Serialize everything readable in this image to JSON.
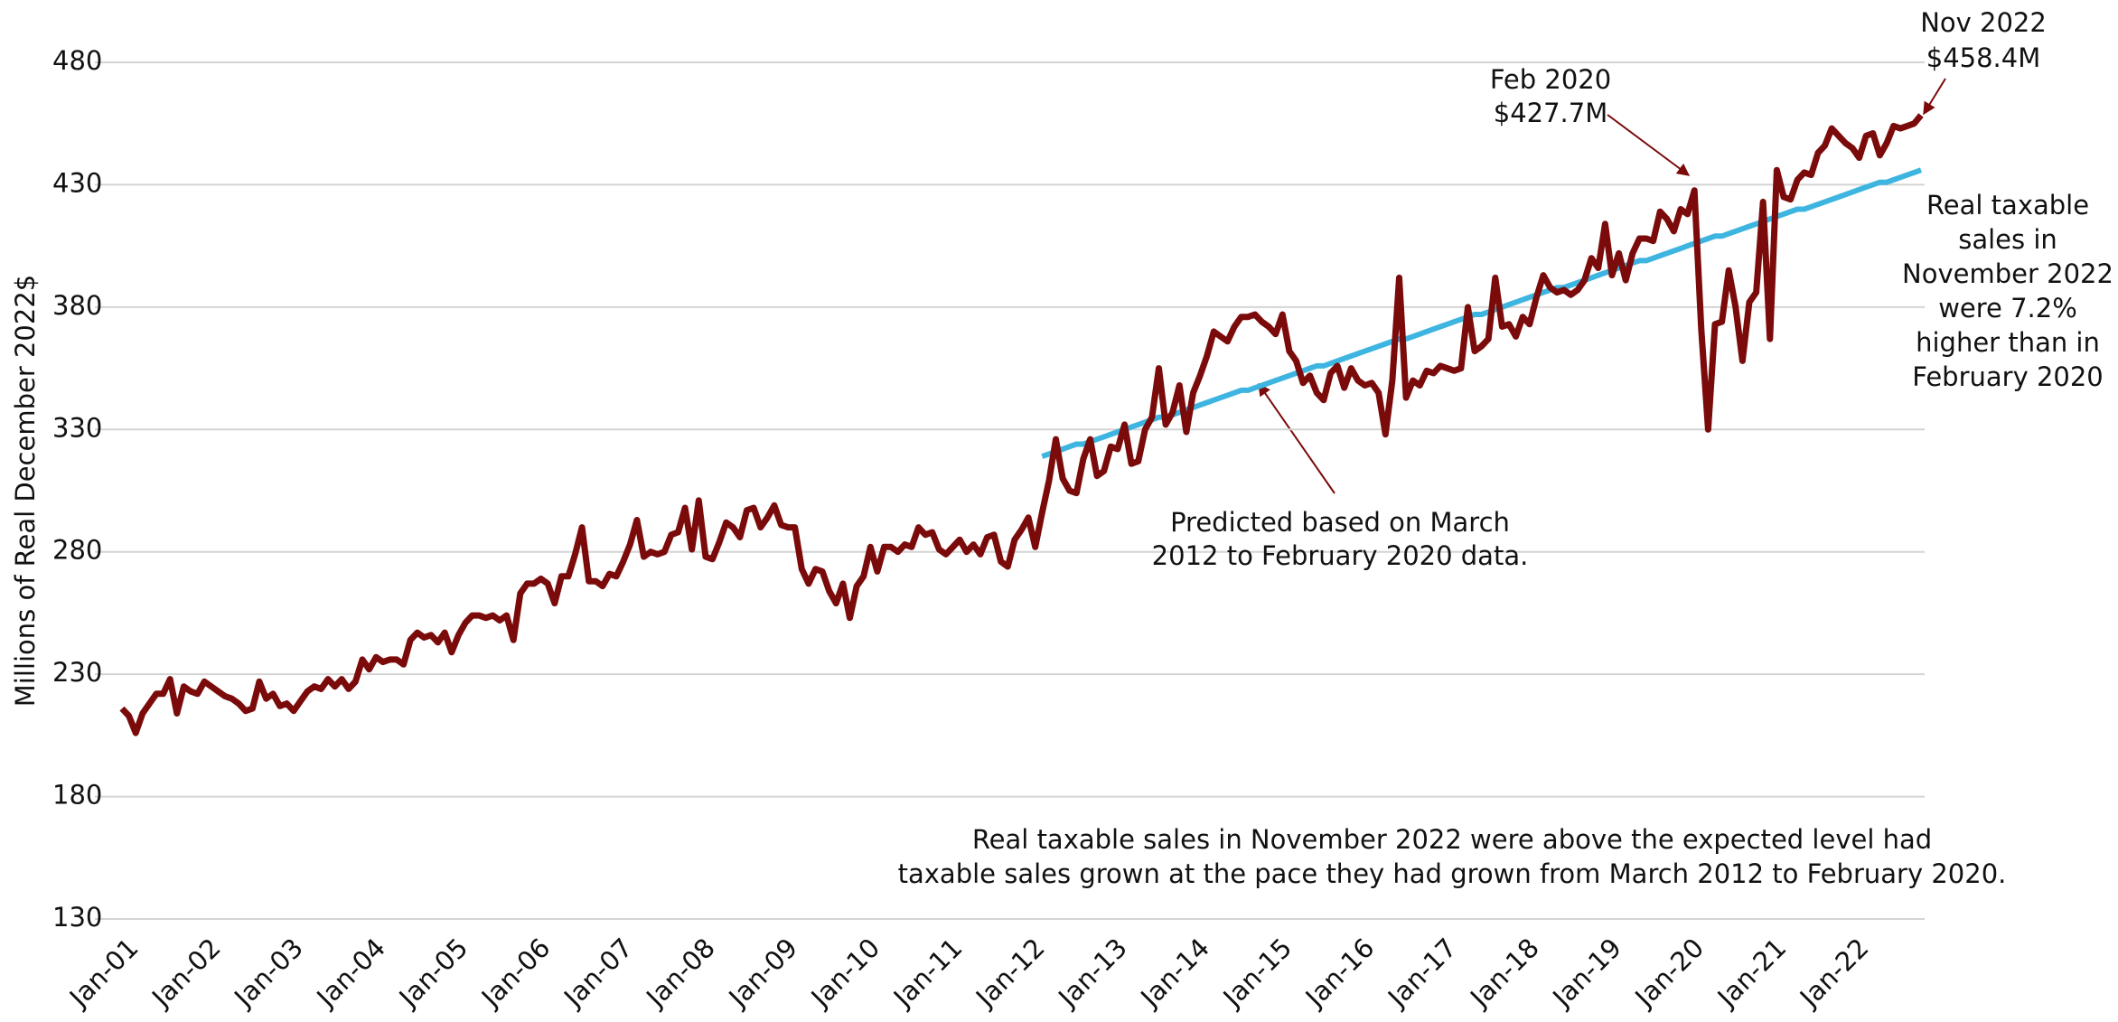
{
  "chart_data": {
    "type": "line",
    "ylabel": "Millions of Real December 2022$",
    "ylim": [
      130,
      480
    ],
    "yticks": [
      130,
      180,
      230,
      280,
      330,
      380,
      430,
      480
    ],
    "grid": true,
    "categories": [
      "Jan-01",
      null,
      null,
      null,
      null,
      null,
      null,
      null,
      null,
      null,
      null,
      null,
      "Jan-02",
      null,
      null,
      null,
      null,
      null,
      null,
      null,
      null,
      null,
      null,
      null,
      "Jan-03",
      null,
      null,
      null,
      null,
      null,
      null,
      null,
      null,
      null,
      null,
      null,
      "Jan-04",
      null,
      null,
      null,
      null,
      null,
      null,
      null,
      null,
      null,
      null,
      null,
      "Jan-05",
      null,
      null,
      null,
      null,
      null,
      null,
      null,
      null,
      null,
      null,
      null,
      "Jan-06",
      null,
      null,
      null,
      null,
      null,
      null,
      null,
      null,
      null,
      null,
      null,
      "Jan-07",
      null,
      null,
      null,
      null,
      null,
      null,
      null,
      null,
      null,
      null,
      null,
      "Jan-08",
      null,
      null,
      null,
      null,
      null,
      null,
      null,
      null,
      null,
      null,
      null,
      "Jan-09",
      null,
      null,
      null,
      null,
      null,
      null,
      null,
      null,
      null,
      null,
      null,
      "Jan-10",
      null,
      null,
      null,
      null,
      null,
      null,
      null,
      null,
      null,
      null,
      null,
      "Jan-11",
      null,
      null,
      null,
      null,
      null,
      null,
      null,
      null,
      null,
      null,
      null,
      "Jan-12",
      null,
      null,
      null,
      null,
      null,
      null,
      null,
      null,
      null,
      null,
      null,
      "Jan-13",
      null,
      null,
      null,
      null,
      null,
      null,
      null,
      null,
      null,
      null,
      null,
      "Jan-14",
      null,
      null,
      null,
      null,
      null,
      null,
      null,
      null,
      null,
      null,
      null,
      "Jan-15",
      null,
      null,
      null,
      null,
      null,
      null,
      null,
      null,
      null,
      null,
      null,
      "Jan-16",
      null,
      null,
      null,
      null,
      null,
      null,
      null,
      null,
      null,
      null,
      null,
      "Jan-17",
      null,
      null,
      null,
      null,
      null,
      null,
      null,
      null,
      null,
      null,
      null,
      "Jan-18",
      null,
      null,
      null,
      null,
      null,
      null,
      null,
      null,
      null,
      null,
      null,
      "Jan-19",
      null,
      null,
      null,
      null,
      null,
      null,
      null,
      null,
      null,
      null,
      null,
      "Jan-20",
      null,
      null,
      null,
      null,
      null,
      null,
      null,
      null,
      null,
      null,
      null,
      "Jan-21",
      null,
      null,
      null,
      null,
      null,
      null,
      null,
      null,
      null,
      null,
      null,
      "Jan-22",
      null,
      null,
      null,
      null,
      null,
      null,
      null,
      null,
      null,
      null
    ],
    "series": [
      {
        "color": "#7b0a0a",
        "values": [
          216,
          213,
          206,
          214,
          218,
          222,
          222,
          228,
          214,
          225,
          223,
          222,
          227,
          225,
          223,
          221,
          220,
          218,
          215,
          216,
          227,
          220,
          222,
          217,
          218,
          215,
          219,
          223,
          225,
          224,
          228,
          225,
          228,
          224,
          227,
          236,
          232,
          237,
          235,
          236,
          236,
          234,
          244,
          247,
          245,
          246,
          243,
          247,
          239,
          246,
          251,
          254,
          254,
          253,
          254,
          252,
          254,
          244,
          263,
          267,
          267,
          269,
          267,
          259,
          270,
          270,
          279,
          290,
          268,
          268,
          266,
          271,
          270,
          276,
          283,
          293,
          278,
          280,
          279,
          280,
          287,
          288,
          298,
          281,
          301,
          278,
          277,
          284,
          292,
          290,
          286,
          297,
          298,
          290,
          294,
          299,
          291,
          290,
          290,
          273,
          267,
          273,
          272,
          264,
          259,
          267,
          253,
          266,
          270,
          282,
          272,
          282,
          282,
          280,
          283,
          282,
          290,
          287,
          288,
          281,
          279,
          282,
          285,
          280,
          283,
          279,
          286,
          287,
          276,
          274,
          285,
          289,
          294,
          282,
          296,
          309,
          326,
          310,
          305,
          304,
          318,
          326,
          311,
          313,
          323,
          322,
          332,
          316,
          317,
          330,
          335,
          355,
          332,
          337,
          348,
          329,
          345,
          352,
          360,
          370,
          368,
          366,
          372,
          376,
          376,
          377,
          374,
          372,
          369,
          377,
          362,
          358,
          349,
          352,
          345,
          342,
          353,
          356,
          347,
          355,
          350,
          348,
          349,
          345,
          328,
          350,
          392,
          343,
          350,
          348,
          354,
          353,
          356,
          355,
          354,
          355,
          380,
          362,
          364,
          367,
          392,
          372,
          373,
          368,
          376,
          373,
          384,
          393,
          388,
          386,
          387,
          385,
          387,
          391,
          400,
          396,
          414,
          393,
          402,
          391,
          402,
          408,
          408,
          407,
          419,
          416,
          411,
          420,
          418,
          427.7,
          371,
          330,
          373,
          374,
          395,
          380,
          358,
          382,
          386,
          423,
          367,
          436,
          425,
          424,
          432,
          435,
          434,
          443,
          446,
          453,
          450,
          447,
          445,
          441,
          450,
          451,
          442,
          447,
          454,
          453,
          454,
          455,
          458.4
        ]
      },
      {
        "color": "#3db5e0",
        "values": [
          null,
          null,
          null,
          null,
          null,
          null,
          null,
          null,
          null,
          null,
          null,
          null,
          null,
          null,
          null,
          null,
          null,
          null,
          null,
          null,
          null,
          null,
          null,
          null,
          null,
          null,
          null,
          null,
          null,
          null,
          null,
          null,
          null,
          null,
          null,
          null,
          null,
          null,
          null,
          null,
          null,
          null,
          null,
          null,
          null,
          null,
          null,
          null,
          null,
          null,
          null,
          null,
          null,
          null,
          null,
          null,
          null,
          null,
          null,
          null,
          null,
          null,
          null,
          null,
          null,
          null,
          null,
          null,
          null,
          null,
          null,
          null,
          null,
          null,
          null,
          null,
          null,
          null,
          null,
          null,
          null,
          null,
          null,
          null,
          null,
          null,
          null,
          null,
          null,
          null,
          null,
          null,
          null,
          null,
          null,
          null,
          null,
          null,
          null,
          null,
          null,
          null,
          null,
          null,
          null,
          null,
          null,
          null,
          null,
          null,
          null,
          null,
          null,
          null,
          null,
          null,
          null,
          null,
          null,
          null,
          null,
          null,
          null,
          null,
          null,
          null,
          null,
          null,
          null,
          null,
          null,
          null,
          null,
          null,
          319,
          320,
          321,
          322,
          323,
          324,
          324,
          325,
          326,
          327,
          328,
          329,
          330,
          331,
          332,
          333,
          334,
          335,
          335,
          336,
          337,
          338,
          339,
          340,
          341,
          342,
          343,
          344,
          345,
          346,
          346,
          347,
          348,
          349,
          350,
          351,
          352,
          353,
          354,
          355,
          356,
          356,
          357,
          358,
          359,
          360,
          361,
          362,
          363,
          364,
          365,
          366,
          367,
          367,
          368,
          369,
          370,
          371,
          372,
          373,
          374,
          375,
          376,
          377,
          377,
          378,
          379,
          380,
          381,
          382,
          383,
          384,
          385,
          386,
          387,
          388,
          388,
          389,
          390,
          391,
          392,
          393,
          394,
          395,
          396,
          397,
          398,
          399,
          399,
          400,
          401,
          402,
          403,
          404,
          405,
          406,
          407,
          408,
          409,
          409,
          410,
          411,
          412,
          413,
          414,
          415,
          416,
          417,
          418,
          419,
          420,
          420,
          421,
          422,
          423,
          424,
          425,
          426,
          427,
          428,
          429,
          430,
          431,
          431,
          432,
          433,
          434,
          435,
          436
        ]
      }
    ],
    "annotations": [
      {
        "text": [
          "Nov 2022",
          "$458.4M"
        ]
      },
      {
        "text": [
          "Feb 2020",
          "$427.7M"
        ]
      },
      {
        "text": [
          "Predicted based on March",
          "2012 to February 2020 data."
        ]
      },
      {
        "text": [
          "Real taxable",
          "sales in",
          "November 2022",
          "were 7.2%",
          "higher than in",
          "February 2020"
        ]
      },
      {
        "text": [
          "Real taxable sales in November 2022 were above the expected level had",
          "taxable sales grown at the pace they had grown from March 2012 to February 2020."
        ]
      }
    ]
  }
}
